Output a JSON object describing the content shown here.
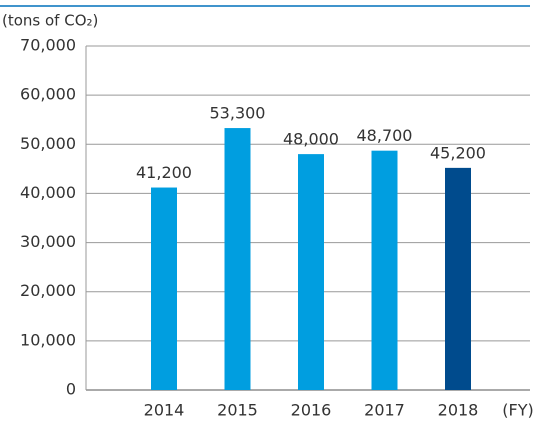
{
  "chart_data": {
    "type": "bar",
    "y_axis_label": "(tons of CO₂)",
    "x_axis_label": "(FY)",
    "categories": [
      "2014",
      "2015",
      "2016",
      "2017",
      "2018"
    ],
    "values": [
      41200,
      53300,
      48000,
      48700,
      45200
    ],
    "value_labels": [
      "41,200",
      "53,300",
      "48,000",
      "48,700",
      "45,200"
    ],
    "colors": [
      "#009ee0",
      "#009ee0",
      "#009ee0",
      "#009ee0",
      "#004b8d"
    ],
    "ylim": [
      0,
      70000
    ],
    "yticks": [
      0,
      {
        "value": 10000,
        "label": "10,000"
      },
      {
        "value": 20000,
        "label": "20,000"
      },
      {
        "value": 30000,
        "label": "30,000"
      },
      {
        "value": 40000,
        "label": "40,000"
      },
      {
        "value": 50000,
        "label": "50,000"
      },
      {
        "value": 60000,
        "label": "60,000"
      },
      {
        "value": 70000,
        "label": "70,000"
      }
    ],
    "grid": true
  }
}
